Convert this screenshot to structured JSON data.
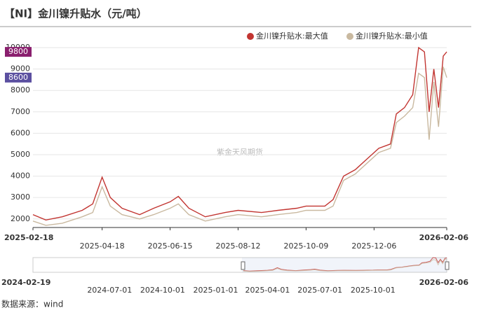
{
  "chart_data": {
    "type": "line",
    "title": "【NI】金川镍升贴水（元/吨）",
    "watermark": "紫金天风期货",
    "source": "数据来源：wind",
    "x": [
      "2025-02-18",
      "2025-03-01",
      "2025-03-15",
      "2025-04-01",
      "2025-04-10",
      "2025-04-18",
      "2025-04-25",
      "2025-05-05",
      "2025-05-20",
      "2025-06-01",
      "2025-06-15",
      "2025-06-22",
      "2025-07-01",
      "2025-07-15",
      "2025-08-01",
      "2025-08-12",
      "2025-09-01",
      "2025-09-15",
      "2025-10-01",
      "2025-10-09",
      "2025-10-25",
      "2025-11-01",
      "2025-11-10",
      "2025-11-20",
      "2025-11-30",
      "2025-12-10",
      "2025-12-20",
      "2025-12-25",
      "2026-01-01",
      "2026-01-08",
      "2026-01-13",
      "2026-01-18",
      "2026-01-22",
      "2026-01-26",
      "2026-01-30",
      "2026-02-03",
      "2026-02-06"
    ],
    "series": [
      {
        "name": "金川镍升贴水:最大值",
        "color": "#c23531",
        "values": [
          2200,
          1950,
          2100,
          2400,
          2700,
          3950,
          3000,
          2500,
          2200,
          2500,
          2800,
          3050,
          2500,
          2100,
          2300,
          2400,
          2300,
          2400,
          2500,
          2600,
          2600,
          2900,
          4000,
          4300,
          4800,
          5300,
          5500,
          6900,
          7200,
          7800,
          10000,
          9800,
          7000,
          9000,
          7200,
          9600,
          9800
        ]
      },
      {
        "name": "金川镍升贴水:最小值",
        "color": "#c9b9a0",
        "values": [
          1900,
          1700,
          1800,
          2100,
          2300,
          3500,
          2600,
          2200,
          2000,
          2200,
          2500,
          2700,
          2200,
          1900,
          2100,
          2200,
          2100,
          2200,
          2300,
          2400,
          2400,
          2600,
          3800,
          4100,
          4600,
          5100,
          5300,
          6500,
          6800,
          7200,
          8800,
          8600,
          5700,
          8400,
          6300,
          9100,
          8600
        ]
      }
    ],
    "ylim": [
      1600,
      10000
    ],
    "yticks": [
      2000,
      3000,
      4000,
      5000,
      6000,
      7000,
      8000,
      9000,
      10000
    ],
    "xlim": [
      "2025-02-18",
      "2026-02-06"
    ],
    "xticks": [
      "2025-02-18",
      "2025-04-18",
      "2025-06-15",
      "2025-08-12",
      "2025-10-09",
      "2025-12-06",
      "2026-02-06"
    ],
    "slider_xlim": [
      "2024-02-19",
      "2026-02-06"
    ],
    "slider_ticks": [
      "2024-02-19",
      "2024-07-01",
      "2024-10-01",
      "2025-01-01",
      "2025-04-01",
      "2025-07-01",
      "2025-10-01",
      "2026-02-06"
    ],
    "grid": true,
    "legend": "top-right"
  }
}
